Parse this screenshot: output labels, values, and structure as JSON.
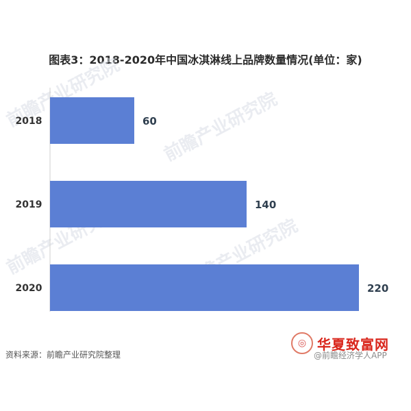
{
  "chart_data": {
    "type": "bar",
    "orientation": "horizontal",
    "title": "图表3：2018-2020年中国冰淇淋线上品牌数量情况(单位：家)",
    "categories": [
      "2018",
      "2019",
      "2020"
    ],
    "values": [
      60,
      140,
      220
    ],
    "xlim": [
      0,
      240
    ],
    "grid": false,
    "legend": "none",
    "colors": {
      "bar": "#5b7fd4",
      "axis": "#cfcfcf"
    }
  },
  "source": "资料来源：前瞻产业研究院整理",
  "watermark": {
    "text": "前瞻产业研究院"
  },
  "brand": {
    "logo_text": "◎",
    "name": "华夏致富网",
    "credit": "@前瞻经济学人APP"
  }
}
